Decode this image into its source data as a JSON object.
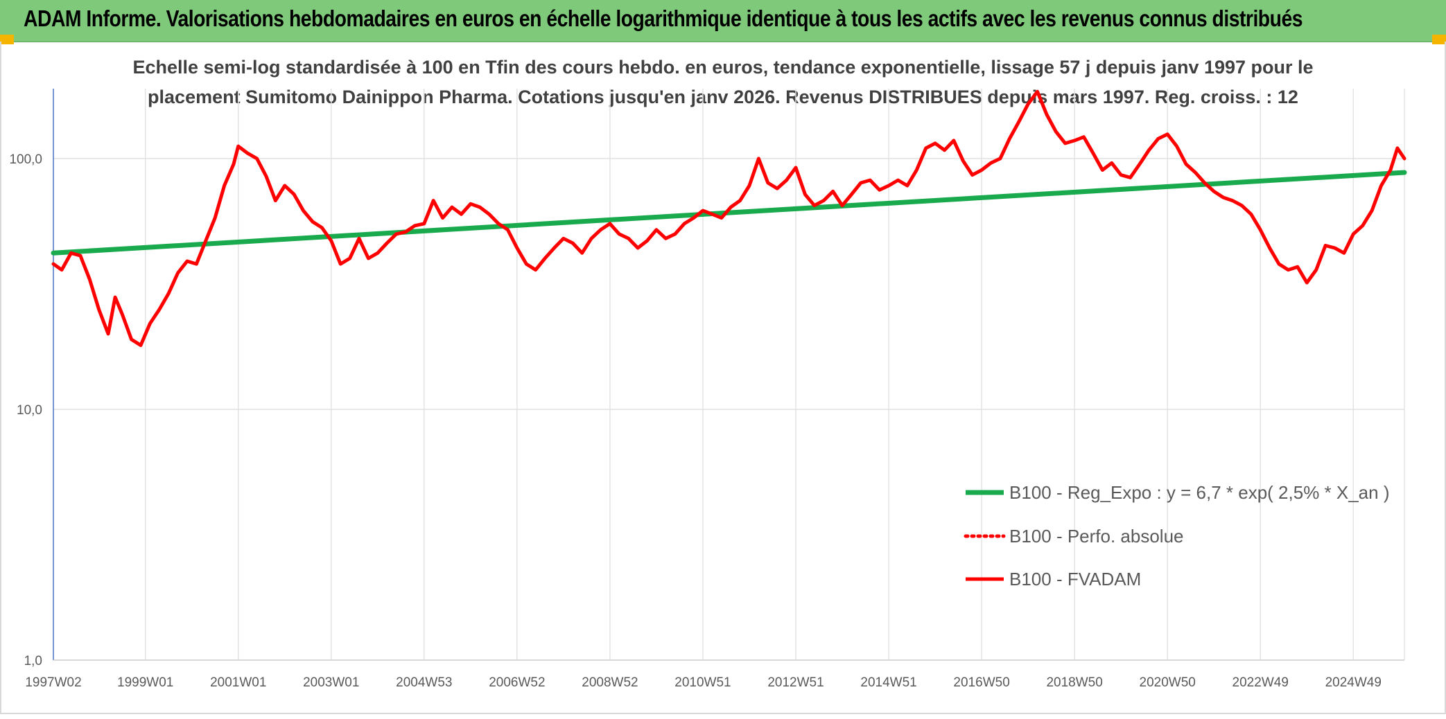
{
  "header": {
    "title": "ADAM Informe. Valorisations hebdomadaires en euros en échelle logarithmique identique à tous les actifs avec les revenus connus distribués"
  },
  "chart_data": {
    "type": "line",
    "title_lines": [
      "Echelle semi-log standardisée à 100 en Tfin des cours hebdo. en euros, tendance exponentielle, lissage 57 j depuis janv 1997 pour le",
      "placement Sumitomo Dainippon Pharma. Cotations jusqu'en janv 2026. Revenus DISTRIBUES depuis mars 1997. Reg. croiss. : 12"
    ],
    "y_scale": "log",
    "ylim": [
      1,
      190
    ],
    "xlim": [
      1997.02,
      2026.1
    ],
    "y_ticks": [
      {
        "value": 1,
        "label": "1,0"
      },
      {
        "value": 10,
        "label": "10,0"
      },
      {
        "value": 100,
        "label": "100,0"
      }
    ],
    "x_ticks": [
      {
        "value": 1997.02,
        "label": "1997W02"
      },
      {
        "value": 1999.0,
        "label": "1999W01"
      },
      {
        "value": 2001.0,
        "label": "2001W01"
      },
      {
        "value": 2003.0,
        "label": "2003W01"
      },
      {
        "value": 2005.0,
        "label": "2004W53"
      },
      {
        "value": 2007.0,
        "label": "2006W52"
      },
      {
        "value": 2009.0,
        "label": "2008W52"
      },
      {
        "value": 2011.0,
        "label": "2010W51"
      },
      {
        "value": 2013.0,
        "label": "2012W51"
      },
      {
        "value": 2015.0,
        "label": "2014W51"
      },
      {
        "value": 2017.0,
        "label": "2016W50"
      },
      {
        "value": 2019.0,
        "label": "2018W50"
      },
      {
        "value": 2021.0,
        "label": "2020W50"
      },
      {
        "value": 2023.0,
        "label": "2022W49"
      },
      {
        "value": 2025.0,
        "label": "2024W49"
      }
    ],
    "grid": true,
    "legend_position": "bottom-right",
    "series": [
      {
        "name": "B100 - Reg_Expo : y = 6,7 * exp( 2,5% *  X_an )",
        "color": "#1aaa4e",
        "style": "solid",
        "x": [
          1997.02,
          2026.1
        ],
        "values": [
          42,
          88
        ]
      },
      {
        "name": "B100 - Perfo. absolue",
        "color": "#ff0000",
        "style": "dotted",
        "x": [],
        "values": []
      },
      {
        "name": "B100 - FVADAM",
        "color": "#ff0000",
        "style": "solid",
        "x": [
          1997.02,
          1997.2,
          1997.4,
          1997.6,
          1997.8,
          1998.0,
          1998.2,
          1998.35,
          1998.5,
          1998.7,
          1998.9,
          1999.1,
          1999.3,
          1999.5,
          1999.7,
          1999.9,
          2000.1,
          2000.3,
          2000.5,
          2000.7,
          2000.9,
          2001.0,
          2001.2,
          2001.4,
          2001.6,
          2001.8,
          2002.0,
          2002.2,
          2002.4,
          2002.6,
          2002.8,
          2003.0,
          2003.2,
          2003.4,
          2003.6,
          2003.8,
          2004.0,
          2004.2,
          2004.4,
          2004.6,
          2004.8,
          2005.0,
          2005.2,
          2005.4,
          2005.6,
          2005.8,
          2006.0,
          2006.2,
          2006.4,
          2006.6,
          2006.8,
          2007.0,
          2007.2,
          2007.4,
          2007.6,
          2007.8,
          2008.0,
          2008.2,
          2008.4,
          2008.6,
          2008.8,
          2009.0,
          2009.2,
          2009.4,
          2009.6,
          2009.8,
          2010.0,
          2010.2,
          2010.4,
          2010.6,
          2010.8,
          2011.0,
          2011.2,
          2011.4,
          2011.6,
          2011.8,
          2012.0,
          2012.2,
          2012.4,
          2012.6,
          2012.8,
          2013.0,
          2013.2,
          2013.4,
          2013.6,
          2013.8,
          2014.0,
          2014.2,
          2014.4,
          2014.6,
          2014.8,
          2015.0,
          2015.2,
          2015.4,
          2015.6,
          2015.8,
          2016.0,
          2016.2,
          2016.4,
          2016.6,
          2016.8,
          2017.0,
          2017.2,
          2017.4,
          2017.6,
          2017.8,
          2018.0,
          2018.2,
          2018.4,
          2018.6,
          2018.8,
          2019.0,
          2019.2,
          2019.4,
          2019.6,
          2019.8,
          2020.0,
          2020.2,
          2020.4,
          2020.6,
          2020.8,
          2021.0,
          2021.2,
          2021.4,
          2021.6,
          2021.8,
          2022.0,
          2022.2,
          2022.4,
          2022.6,
          2022.8,
          2023.0,
          2023.2,
          2023.4,
          2023.6,
          2023.8,
          2024.0,
          2024.2,
          2024.4,
          2024.6,
          2024.8,
          2025.0,
          2025.2,
          2025.4,
          2025.6,
          2025.8,
          2025.95,
          2026.1
        ],
        "values": [
          38,
          36,
          42,
          41,
          33,
          25,
          20,
          28,
          24,
          19,
          18,
          22,
          25,
          29,
          35,
          39,
          38,
          47,
          58,
          78,
          95,
          112,
          105,
          100,
          85,
          68,
          78,
          72,
          62,
          56,
          53,
          47,
          38,
          40,
          48,
          40,
          42,
          46,
          50,
          51,
          54,
          55,
          68,
          58,
          64,
          60,
          66,
          64,
          60,
          55,
          52,
          44,
          38,
          36,
          40,
          44,
          48,
          46,
          42,
          48,
          52,
          55,
          50,
          48,
          44,
          47,
          52,
          48,
          50,
          55,
          58,
          62,
          60,
          58,
          64,
          68,
          78,
          100,
          80,
          76,
          82,
          92,
          72,
          65,
          68,
          74,
          65,
          72,
          80,
          82,
          75,
          78,
          82,
          78,
          90,
          110,
          115,
          108,
          118,
          98,
          86,
          90,
          96,
          100,
          120,
          140,
          165,
          185,
          150,
          128,
          115,
          118,
          122,
          105,
          90,
          96,
          86,
          84,
          95,
          108,
          120,
          125,
          112,
          95,
          88,
          80,
          74,
          70,
          68,
          65,
          60,
          52,
          44,
          38,
          36,
          37,
          32,
          36,
          45,
          44,
          42,
          50,
          54,
          62,
          78,
          90,
          110,
          100
        ]
      }
    ]
  }
}
